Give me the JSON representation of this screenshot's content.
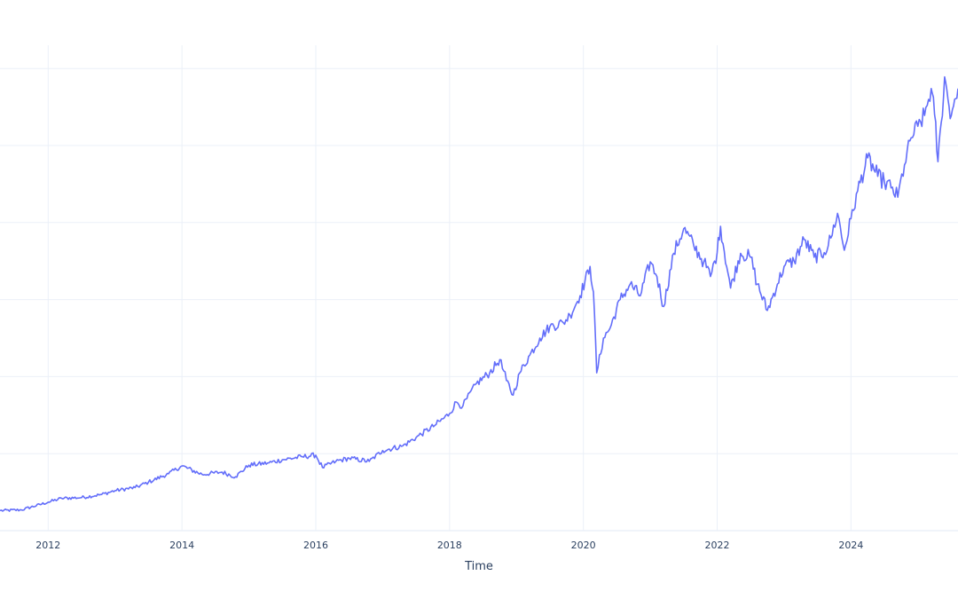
{
  "chart_data": {
    "type": "line",
    "title": "",
    "xlabel": "Time",
    "ylabel": "",
    "x_tick_labels": [
      "2012",
      "2014",
      "2016",
      "2018",
      "2020",
      "2022",
      "2024"
    ],
    "x_tick_values": [
      2012,
      2014,
      2016,
      2018,
      2020,
      2022,
      2024
    ],
    "xlim": [
      2011.28,
      2025.6
    ],
    "y_tick_labels_visible": false,
    "y_grid_values": [
      0,
      1,
      2,
      3,
      4,
      5,
      6
    ],
    "ylim": [
      -0.3,
      6.3
    ],
    "y_units_note": "relative units; one unit = one horizontal gridline step (y-axis labels cropped)",
    "grid": true,
    "legend": false,
    "series": [
      {
        "name": "value",
        "color": "#636efa",
        "points": [
          [
            2011.28,
            0.26
          ],
          [
            2011.6,
            0.27
          ],
          [
            2012.0,
            0.37
          ],
          [
            2012.2,
            0.42
          ],
          [
            2012.5,
            0.43
          ],
          [
            2012.8,
            0.47
          ],
          [
            2013.0,
            0.52
          ],
          [
            2013.3,
            0.56
          ],
          [
            2013.5,
            0.63
          ],
          [
            2013.8,
            0.74
          ],
          [
            2014.0,
            0.84
          ],
          [
            2014.3,
            0.73
          ],
          [
            2014.6,
            0.76
          ],
          [
            2014.8,
            0.7
          ],
          [
            2015.0,
            0.85
          ],
          [
            2015.3,
            0.88
          ],
          [
            2015.5,
            0.92
          ],
          [
            2015.8,
            0.96
          ],
          [
            2016.0,
            0.98
          ],
          [
            2016.1,
            0.82
          ],
          [
            2016.3,
            0.9
          ],
          [
            2016.5,
            0.94
          ],
          [
            2016.8,
            0.9
          ],
          [
            2017.0,
            1.04
          ],
          [
            2017.3,
            1.1
          ],
          [
            2017.5,
            1.21
          ],
          [
            2017.8,
            1.38
          ],
          [
            2018.0,
            1.52
          ],
          [
            2018.1,
            1.67
          ],
          [
            2018.2,
            1.62
          ],
          [
            2018.4,
            1.91
          ],
          [
            2018.6,
            2.05
          ],
          [
            2018.75,
            2.22
          ],
          [
            2018.85,
            1.95
          ],
          [
            2018.95,
            1.76
          ],
          [
            2019.05,
            2.05
          ],
          [
            2019.2,
            2.28
          ],
          [
            2019.35,
            2.5
          ],
          [
            2019.5,
            2.65
          ],
          [
            2019.7,
            2.7
          ],
          [
            2019.8,
            2.8
          ],
          [
            2019.95,
            3.05
          ],
          [
            2020.1,
            3.43
          ],
          [
            2020.15,
            3.1
          ],
          [
            2020.2,
            2.05
          ],
          [
            2020.3,
            2.5
          ],
          [
            2020.4,
            2.63
          ],
          [
            2020.55,
            3.0
          ],
          [
            2020.7,
            3.2
          ],
          [
            2020.85,
            3.05
          ],
          [
            2021.0,
            3.49
          ],
          [
            2021.1,
            3.3
          ],
          [
            2021.2,
            2.91
          ],
          [
            2021.35,
            3.6
          ],
          [
            2021.5,
            3.92
          ],
          [
            2021.65,
            3.7
          ],
          [
            2021.8,
            3.49
          ],
          [
            2021.9,
            3.3
          ],
          [
            2022.0,
            3.61
          ],
          [
            2022.05,
            3.95
          ],
          [
            2022.2,
            3.15
          ],
          [
            2022.35,
            3.6
          ],
          [
            2022.5,
            3.55
          ],
          [
            2022.6,
            3.2
          ],
          [
            2022.75,
            2.86
          ],
          [
            2022.9,
            3.2
          ],
          [
            2023.0,
            3.43
          ],
          [
            2023.15,
            3.5
          ],
          [
            2023.3,
            3.78
          ],
          [
            2023.45,
            3.55
          ],
          [
            2023.6,
            3.61
          ],
          [
            2023.7,
            3.8
          ],
          [
            2023.8,
            4.12
          ],
          [
            2023.9,
            3.64
          ],
          [
            2024.0,
            4.05
          ],
          [
            2024.1,
            4.41
          ],
          [
            2024.25,
            4.84
          ],
          [
            2024.4,
            4.6
          ],
          [
            2024.5,
            4.53
          ],
          [
            2024.6,
            4.45
          ],
          [
            2024.7,
            4.33
          ],
          [
            2024.8,
            4.75
          ],
          [
            2024.9,
            5.1
          ],
          [
            2025.0,
            5.25
          ],
          [
            2025.1,
            5.39
          ],
          [
            2025.2,
            5.74
          ],
          [
            2025.25,
            5.4
          ],
          [
            2025.3,
            4.79
          ],
          [
            2025.35,
            5.3
          ],
          [
            2025.4,
            5.89
          ],
          [
            2025.45,
            5.6
          ],
          [
            2025.5,
            5.39
          ],
          [
            2025.55,
            5.6
          ],
          [
            2025.6,
            5.74
          ]
        ]
      }
    ]
  },
  "plot_style": {
    "background": "#ffffff",
    "gridline_color": "#ebf0f8",
    "text_color": "#2a3f5f"
  }
}
